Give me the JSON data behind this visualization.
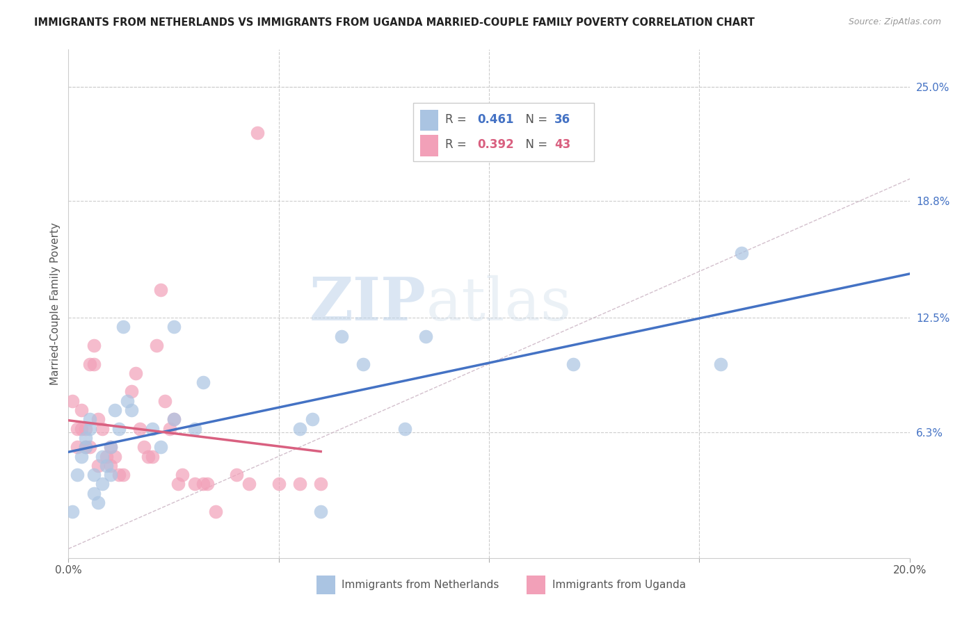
{
  "title": "IMMIGRANTS FROM NETHERLANDS VS IMMIGRANTS FROM UGANDA MARRIED-COUPLE FAMILY POVERTY CORRELATION CHART",
  "source": "Source: ZipAtlas.com",
  "ylabel": "Married-Couple Family Poverty",
  "xlim": [
    0.0,
    0.2
  ],
  "ylim": [
    -0.005,
    0.27
  ],
  "y_tick_labels_right": [
    "25.0%",
    "18.8%",
    "12.5%",
    "6.3%"
  ],
  "y_tick_values_right": [
    0.25,
    0.188,
    0.125,
    0.063
  ],
  "netherlands_color": "#aac4e2",
  "uganda_color": "#f2a0b8",
  "netherlands_line_color": "#4472c4",
  "uganda_line_color": "#d96080",
  "diagonal_color": "#c8b0c0",
  "watermark_zip": "ZIP",
  "watermark_atlas": "atlas",
  "background_color": "#ffffff",
  "grid_color": "#cccccc",
  "netherlands_x": [
    0.001,
    0.002,
    0.003,
    0.004,
    0.004,
    0.005,
    0.005,
    0.006,
    0.006,
    0.007,
    0.008,
    0.008,
    0.009,
    0.01,
    0.01,
    0.011,
    0.012,
    0.013,
    0.014,
    0.015,
    0.02,
    0.022,
    0.025,
    0.025,
    0.03,
    0.032,
    0.055,
    0.058,
    0.06,
    0.065,
    0.07,
    0.08,
    0.085,
    0.12,
    0.155,
    0.16
  ],
  "netherlands_y": [
    0.02,
    0.04,
    0.05,
    0.055,
    0.06,
    0.065,
    0.07,
    0.04,
    0.03,
    0.025,
    0.05,
    0.035,
    0.045,
    0.04,
    0.055,
    0.075,
    0.065,
    0.12,
    0.08,
    0.075,
    0.065,
    0.055,
    0.07,
    0.12,
    0.065,
    0.09,
    0.065,
    0.07,
    0.02,
    0.115,
    0.1,
    0.065,
    0.115,
    0.1,
    0.1,
    0.16
  ],
  "uganda_x": [
    0.001,
    0.002,
    0.002,
    0.003,
    0.003,
    0.004,
    0.004,
    0.005,
    0.005,
    0.006,
    0.006,
    0.007,
    0.007,
    0.008,
    0.009,
    0.01,
    0.01,
    0.011,
    0.012,
    0.013,
    0.015,
    0.016,
    0.017,
    0.018,
    0.019,
    0.02,
    0.021,
    0.022,
    0.023,
    0.024,
    0.025,
    0.026,
    0.027,
    0.03,
    0.032,
    0.033,
    0.035,
    0.04,
    0.043,
    0.045,
    0.05,
    0.055,
    0.06
  ],
  "uganda_y": [
    0.08,
    0.065,
    0.055,
    0.065,
    0.075,
    0.055,
    0.065,
    0.055,
    0.1,
    0.1,
    0.11,
    0.045,
    0.07,
    0.065,
    0.05,
    0.045,
    0.055,
    0.05,
    0.04,
    0.04,
    0.085,
    0.095,
    0.065,
    0.055,
    0.05,
    0.05,
    0.11,
    0.14,
    0.08,
    0.065,
    0.07,
    0.035,
    0.04,
    0.035,
    0.035,
    0.035,
    0.02,
    0.04,
    0.035,
    0.225,
    0.035,
    0.035,
    0.035
  ]
}
